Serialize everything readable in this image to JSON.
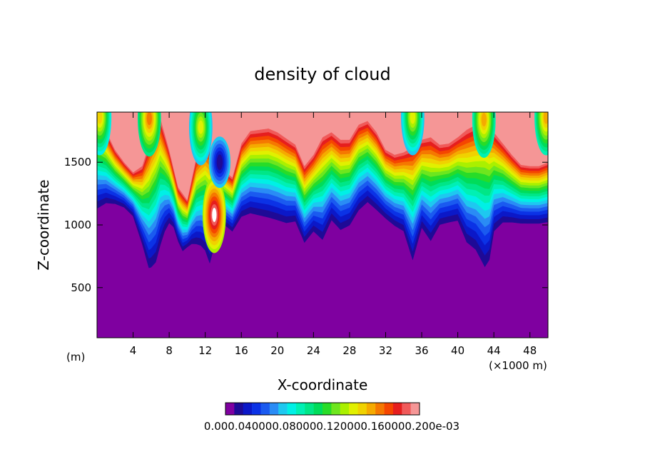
{
  "chart_data": {
    "type": "heatmap",
    "title": "density of cloud",
    "xlabel": "X-coordinate",
    "ylabel": "Z-coordinate",
    "x_unit": "(×1000 m)",
    "y_unit": "(m)",
    "xlim": [
      0,
      50
    ],
    "ylim": [
      100,
      1900
    ],
    "x_ticks": [
      4,
      8,
      12,
      16,
      20,
      24,
      28,
      32,
      36,
      40,
      44,
      48
    ],
    "x_tick_labels": [
      "4",
      "8",
      "12",
      "16",
      "20",
      "24",
      "28",
      "32",
      "36",
      "40",
      "44",
      "48"
    ],
    "y_ticks": [
      500,
      1000,
      1500
    ],
    "y_tick_labels": [
      "500",
      "1000",
      "1500"
    ],
    "colorbar": {
      "colors": [
        "#7f00a0",
        "#1e0a96",
        "#0b18c8",
        "#0b32e6",
        "#1a5af0",
        "#2a8cf5",
        "#1ec8f0",
        "#00f0e6",
        "#00f0b4",
        "#00e687",
        "#00dc5a",
        "#28dc28",
        "#6ee61e",
        "#aaf000",
        "#e1f000",
        "#f0d200",
        "#f5aa00",
        "#f57800",
        "#f54600",
        "#e61e1e",
        "#f05a5a",
        "#f59696"
      ],
      "label_text": "0.000.040000.080000.120000.160000.200e-03"
    },
    "cloud_base": [
      [
        0,
        1050
      ],
      [
        1,
        1110
      ],
      [
        2,
        1120
      ],
      [
        3,
        1100
      ],
      [
        4,
        1030
      ],
      [
        5,
        780
      ],
      [
        5.8,
        530
      ],
      [
        6.5,
        580
      ],
      [
        7,
        720
      ],
      [
        7.5,
        860
      ],
      [
        8,
        950
      ],
      [
        8.5,
        930
      ],
      [
        9,
        820
      ],
      [
        9.5,
        740
      ],
      [
        10,
        780
      ],
      [
        10.5,
        790
      ],
      [
        11,
        770
      ],
      [
        11.5,
        750
      ],
      [
        12,
        700
      ],
      [
        12.5,
        590
      ],
      [
        13,
        750
      ],
      [
        13.5,
        870
      ],
      [
        14,
        960
      ],
      [
        15,
        900
      ],
      [
        16,
        1000
      ],
      [
        17,
        1020
      ],
      [
        18,
        1000
      ],
      [
        19,
        980
      ],
      [
        20,
        960
      ],
      [
        21,
        940
      ],
      [
        22,
        960
      ],
      [
        23,
        790
      ],
      [
        24,
        880
      ],
      [
        25,
        790
      ],
      [
        26,
        960
      ],
      [
        27,
        880
      ],
      [
        28,
        920
      ],
      [
        29,
        1040
      ],
      [
        30,
        1110
      ],
      [
        31,
        1050
      ],
      [
        32,
        990
      ],
      [
        33,
        930
      ],
      [
        34,
        880
      ],
      [
        35,
        620
      ],
      [
        36,
        900
      ],
      [
        37,
        780
      ],
      [
        38,
        930
      ],
      [
        39,
        950
      ],
      [
        40,
        960
      ],
      [
        41,
        760
      ],
      [
        42,
        690
      ],
      [
        43,
        530
      ],
      [
        43.5,
        600
      ],
      [
        44,
        860
      ],
      [
        45,
        950
      ],
      [
        46,
        960
      ],
      [
        47,
        960
      ],
      [
        48,
        960
      ],
      [
        49,
        960
      ],
      [
        50,
        970
      ]
    ],
    "cloud_top": [
      [
        0,
        1850
      ],
      [
        1,
        1750
      ],
      [
        2,
        1600
      ],
      [
        3,
        1500
      ],
      [
        4,
        1420
      ],
      [
        5,
        1470
      ],
      [
        6,
        1700
      ],
      [
        7,
        1860
      ],
      [
        8,
        1600
      ],
      [
        9,
        1300
      ],
      [
        10,
        1200
      ],
      [
        11,
        1540
      ],
      [
        12,
        1650
      ],
      [
        13,
        1600
      ],
      [
        14,
        1440
      ],
      [
        15,
        1380
      ],
      [
        16,
        1650
      ],
      [
        17,
        1750
      ],
      [
        18,
        1760
      ],
      [
        19,
        1770
      ],
      [
        20,
        1740
      ],
      [
        21,
        1690
      ],
      [
        22,
        1640
      ],
      [
        23,
        1470
      ],
      [
        24,
        1560
      ],
      [
        25,
        1700
      ],
      [
        26,
        1740
      ],
      [
        27,
        1680
      ],
      [
        28,
        1680
      ],
      [
        29,
        1800
      ],
      [
        30,
        1830
      ],
      [
        31,
        1740
      ],
      [
        32,
        1600
      ],
      [
        33,
        1560
      ],
      [
        34,
        1580
      ],
      [
        35,
        1620
      ],
      [
        36,
        1680
      ],
      [
        37,
        1700
      ],
      [
        38,
        1640
      ],
      [
        39,
        1650
      ],
      [
        40,
        1700
      ],
      [
        41,
        1760
      ],
      [
        42,
        1800
      ],
      [
        43,
        1860
      ],
      [
        44,
        1740
      ],
      [
        45,
        1650
      ],
      [
        46,
        1560
      ],
      [
        47,
        1480
      ],
      [
        48,
        1470
      ],
      [
        49,
        1470
      ],
      [
        50,
        1500
      ]
    ],
    "hotspots": [
      {
        "x": 13,
        "z": 1080,
        "level": 21
      },
      {
        "x": 13.6,
        "z": 1500,
        "level": 1
      },
      {
        "x": 5.8,
        "z": 1850,
        "level": 17
      },
      {
        "x": 42.9,
        "z": 1840,
        "level": 16
      },
      {
        "x": 0.3,
        "z": 1860,
        "level": 15
      },
      {
        "x": 49.8,
        "z": 1860,
        "level": 16
      },
      {
        "x": 35,
        "z": 1860,
        "level": 14
      },
      {
        "x": 11.5,
        "z": 1780,
        "level": 14
      }
    ]
  }
}
